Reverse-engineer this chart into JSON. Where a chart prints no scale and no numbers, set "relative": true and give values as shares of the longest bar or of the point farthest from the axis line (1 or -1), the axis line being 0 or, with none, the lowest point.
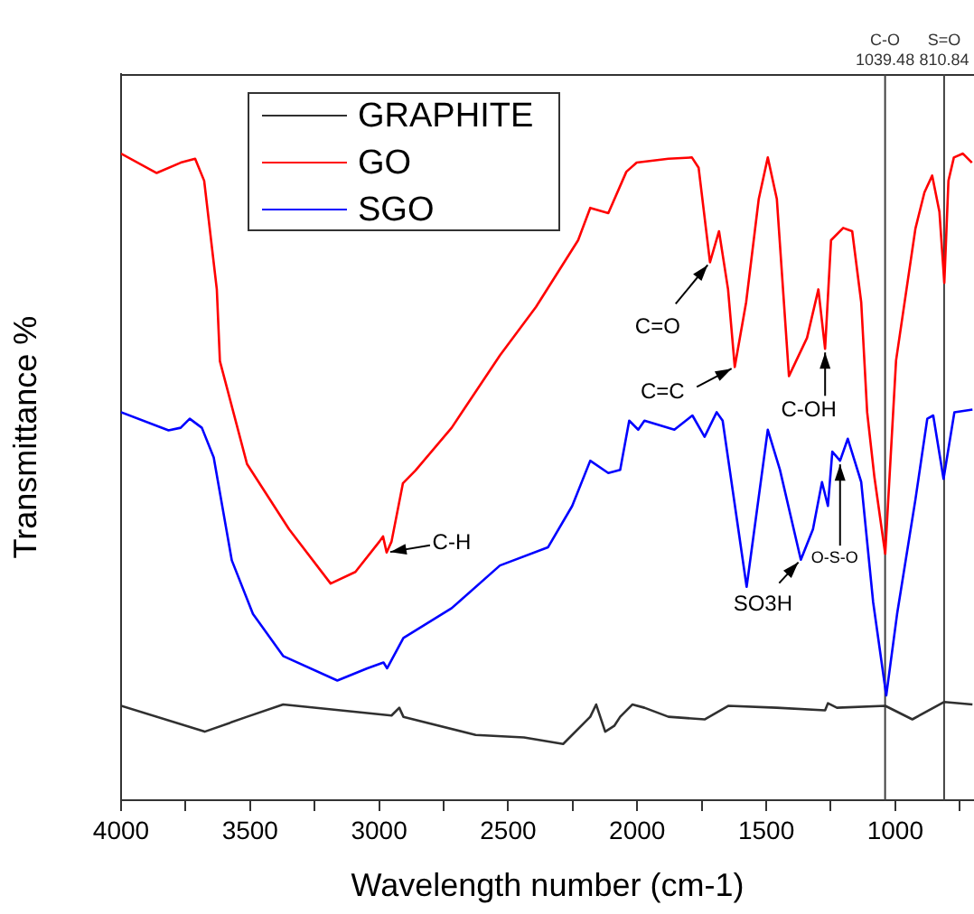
{
  "chart_data": {
    "type": "line",
    "relative": true,
    "xlabel": "Wavelength number (cm-1)",
    "ylabel": "Transmittance %",
    "xlim": [
      4000,
      695
    ],
    "xticks": [
      4000,
      {
        "value": 3750,
        "label": null
      },
      3500,
      {
        "value": 3250,
        "label": null
      },
      3000,
      {
        "value": 2750,
        "label": null
      },
      2500,
      {
        "value": 2250,
        "label": null
      },
      2000,
      {
        "value": 1750,
        "label": null
      },
      1500,
      {
        "value": 1250,
        "label": null
      },
      1000,
      {
        "value": 750,
        "label": null
      }
    ],
    "legend": "top left",
    "grid": false,
    "marker": "none",
    "line_style": "solid",
    "series": [
      {
        "name": "GRAPHITE",
        "color": "#303030",
        "x": [
          4000,
          3676,
          3512,
          3372,
          2952,
          2922,
          2906,
          2626,
          2439,
          2287,
          2182,
          2159,
          2124,
          2089,
          2066,
          2019,
          1972,
          1879,
          1739,
          1646,
          1459,
          1272,
          1261,
          1226,
          1039,
          934,
          810,
          701
        ],
        "values": [
          0.146,
          0.106,
          0.129,
          0.148,
          0.131,
          0.143,
          0.129,
          0.101,
          0.097,
          0.087,
          0.129,
          0.148,
          0.106,
          0.115,
          0.129,
          0.148,
          0.143,
          0.129,
          0.125,
          0.146,
          0.143,
          0.139,
          0.15,
          0.143,
          0.146,
          0.125,
          0.152,
          0.148
        ]
      },
      {
        "name": "GO",
        "color": "#ff0000",
        "x": [
          4000,
          3862,
          3769,
          3713,
          3678,
          3629,
          3617,
          3512,
          3349,
          3188,
          3092,
          2999,
          2985,
          2971,
          2952,
          2908,
          2859,
          2719,
          2532,
          2392,
          2229,
          2182,
          2112,
          2042,
          2002,
          1879,
          1788,
          1762,
          1718,
          1683,
          1648,
          1622,
          1578,
          1529,
          1494,
          1459,
          1412,
          1342,
          1298,
          1272,
          1249,
          1202,
          1167,
          1132,
          1109,
          1081,
          1039,
          997,
          922,
          887,
          857,
          829,
          810,
          794,
          773,
          738,
          703
        ],
        "values": [
          1.0,
          0.97,
          0.986,
          0.992,
          0.958,
          0.79,
          0.679,
          0.52,
          0.419,
          0.335,
          0.353,
          0.4,
          0.408,
          0.383,
          0.4,
          0.49,
          0.51,
          0.576,
          0.688,
          0.763,
          0.866,
          0.916,
          0.908,
          0.972,
          0.986,
          0.992,
          0.994,
          0.978,
          0.832,
          0.88,
          0.79,
          0.67,
          0.77,
          0.93,
          0.994,
          0.93,
          0.656,
          0.715,
          0.79,
          0.698,
          0.866,
          0.885,
          0.88,
          0.77,
          0.6,
          0.5,
          0.381,
          0.68,
          0.884,
          0.94,
          0.966,
          0.91,
          0.8,
          0.958,
          0.994,
          1.0,
          0.986
        ]
      },
      {
        "name": "SGO",
        "color": "#0000ff",
        "x": [
          4000,
          3816,
          3769,
          3734,
          3687,
          3641,
          3571,
          3489,
          3372,
          3162,
          3046,
          2983,
          2969,
          2906,
          2719,
          2532,
          2346,
          2252,
          2182,
          2112,
          2066,
          2031,
          1996,
          1972,
          1856,
          1786,
          1739,
          1692,
          1669,
          1576,
          1494,
          1447,
          1366,
          1319,
          1284,
          1261,
          1244,
          1214,
          1184,
          1132,
          1086,
          1035,
          993,
          922,
          876,
          853,
          813,
          771,
          701
        ],
        "values": [
          0.6,
          0.572,
          0.576,
          0.59,
          0.576,
          0.53,
          0.371,
          0.288,
          0.223,
          0.185,
          0.204,
          0.213,
          0.204,
          0.251,
          0.297,
          0.363,
          0.391,
          0.455,
          0.525,
          0.506,
          0.511,
          0.587,
          0.573,
          0.587,
          0.573,
          0.595,
          0.562,
          0.6,
          0.587,
          0.33,
          0.573,
          0.511,
          0.372,
          0.419,
          0.492,
          0.455,
          0.539,
          0.525,
          0.559,
          0.492,
          0.307,
          0.162,
          0.288,
          0.465,
          0.59,
          0.595,
          0.497,
          0.6,
          0.604
        ]
      }
    ],
    "ref_lines": [
      {
        "axis": "x",
        "value": 1039.48,
        "label": "C-O 1039.48",
        "color": "#404040"
      },
      {
        "axis": "x",
        "value": 810.84,
        "label": "S=O 810.84",
        "color": "#404040"
      }
    ],
    "annotations": [
      {
        "text": "C=O",
        "x": 1718,
        "y": 0.832
      },
      {
        "text": "C=C",
        "x": 1622,
        "y": 0.67
      },
      {
        "text": "C-OH",
        "x": 1272,
        "y": 0.698
      },
      {
        "text": "C-H",
        "x": 2971,
        "y": 0.383
      },
      {
        "text": "SO3H",
        "x": 1366,
        "y": 0.372
      },
      {
        "text": "O-S-O",
        "x": 1214,
        "y": 0.525
      }
    ]
  }
}
